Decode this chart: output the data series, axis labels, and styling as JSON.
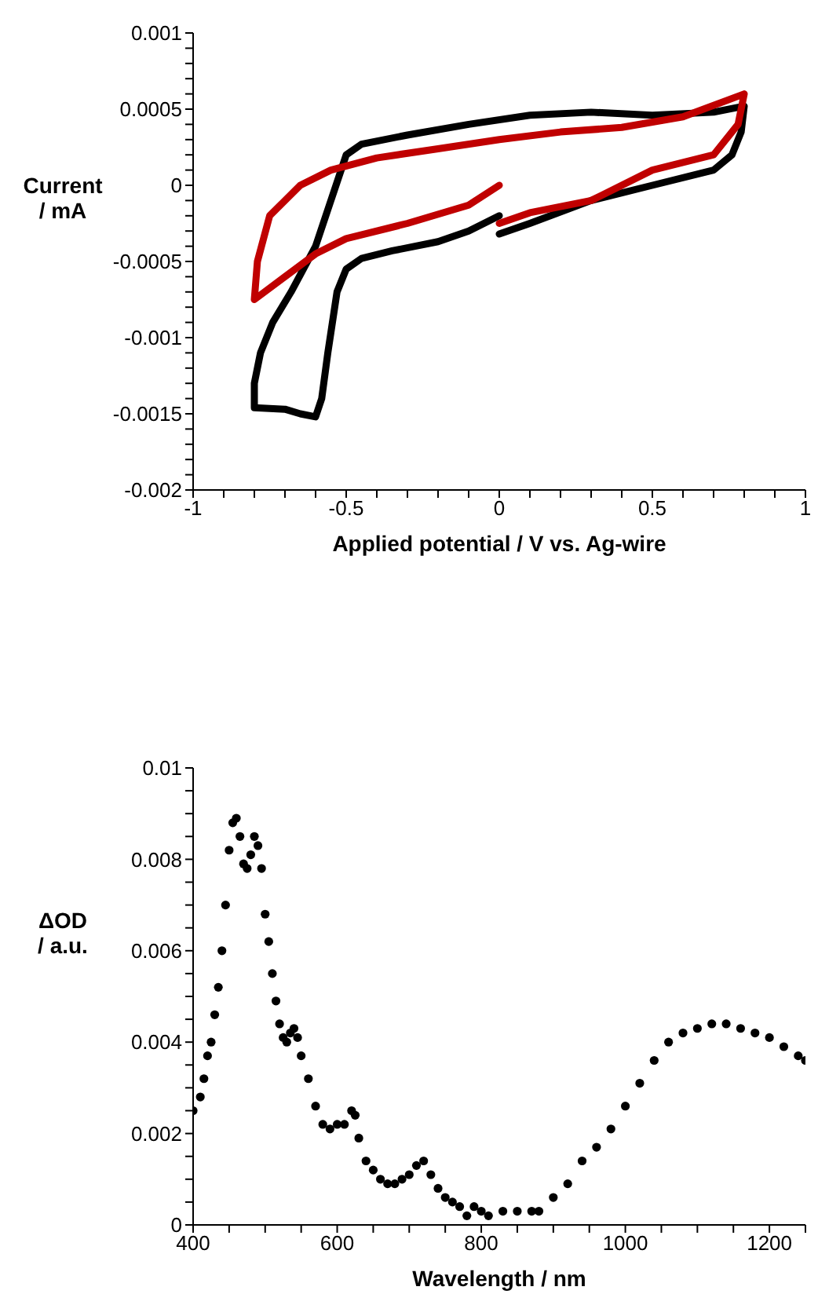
{
  "chart_data": [
    {
      "type": "line",
      "xlabel": "Applied potential / V vs. Ag-wire",
      "ylabel": "Current\n/ mA",
      "marker": "none",
      "line_style": "solid",
      "xlim": [
        -1,
        1
      ],
      "ylim": [
        -0.002,
        0.001
      ],
      "xticks": [
        -1,
        {
          "value": -0.9,
          "label": null
        },
        {
          "value": -0.8,
          "label": null
        },
        {
          "value": -0.7,
          "label": null
        },
        {
          "value": -0.6,
          "label": null
        },
        -0.5,
        {
          "value": -0.4,
          "label": null
        },
        {
          "value": -0.3,
          "label": null
        },
        {
          "value": -0.2,
          "label": null
        },
        {
          "value": -0.1,
          "label": null
        },
        0,
        {
          "value": 0.1,
          "label": null
        },
        {
          "value": 0.2,
          "label": null
        },
        {
          "value": 0.3,
          "label": null
        },
        {
          "value": 0.4,
          "label": null
        },
        0.5,
        {
          "value": 0.6,
          "label": null
        },
        {
          "value": 0.7,
          "label": null
        },
        {
          "value": 0.8,
          "label": null
        },
        {
          "value": 0.9,
          "label": null
        },
        1
      ],
      "yticks": [
        -0.002,
        {
          "value": -0.0019,
          "label": null
        },
        {
          "value": -0.0018,
          "label": null
        },
        {
          "value": -0.0017,
          "label": null
        },
        {
          "value": -0.0016,
          "label": null
        },
        -0.0015,
        {
          "value": -0.0014,
          "label": null
        },
        {
          "value": -0.0013,
          "label": null
        },
        {
          "value": -0.0012,
          "label": null
        },
        {
          "value": -0.0011,
          "label": null
        },
        -0.001,
        {
          "value": -0.0009,
          "label": null
        },
        {
          "value": -0.0008,
          "label": null
        },
        {
          "value": -0.0007,
          "label": null
        },
        {
          "value": -0.0006,
          "label": null
        },
        -0.0005,
        {
          "value": -0.0004,
          "label": null
        },
        {
          "value": -0.0003,
          "label": null
        },
        {
          "value": -0.0002,
          "label": null
        },
        {
          "value": -0.0001,
          "label": null
        },
        0,
        {
          "value": 0.0001,
          "label": null
        },
        {
          "value": 0.0002,
          "label": null
        },
        {
          "value": 0.0003,
          "label": null
        },
        {
          "value": 0.0004,
          "label": null
        },
        0.0005,
        {
          "value": 0.0006,
          "label": null
        },
        {
          "value": 0.0007,
          "label": null
        },
        {
          "value": 0.0008,
          "label": null
        },
        {
          "value": 0.0009,
          "label": null
        },
        0.001
      ],
      "series": [
        {
          "color": "#000000",
          "x": [
            0,
            -0.1,
            -0.2,
            -0.35,
            -0.45,
            -0.5,
            -0.53,
            -0.56,
            -0.58,
            -0.6,
            -0.65,
            -0.7,
            -0.8,
            -0.8,
            -0.78,
            -0.74,
            -0.68,
            -0.6,
            -0.55,
            -0.5,
            -0.45,
            -0.3,
            -0.1,
            0.1,
            0.3,
            0.5,
            0.7,
            0.8,
            0.79,
            0.76,
            0.7,
            0.5,
            0.3,
            0.1,
            0
          ],
          "values": [
            -0.0002,
            -0.0003,
            -0.00037,
            -0.00043,
            -0.00048,
            -0.00055,
            -0.0007,
            -0.0011,
            -0.0014,
            -0.00152,
            -0.0015,
            -0.00147,
            -0.00146,
            -0.0013,
            -0.0011,
            -0.0009,
            -0.0007,
            -0.0004,
            -0.0001,
            0.0002,
            0.00027,
            0.00033,
            0.0004,
            0.00046,
            0.00048,
            0.00046,
            0.00048,
            0.00052,
            0.00035,
            0.0002,
            0.0001,
            0.0,
            -0.0001,
            -0.00025,
            -0.00032
          ]
        },
        {
          "color": "#c00000",
          "x": [
            0,
            -0.1,
            -0.3,
            -0.5,
            -0.6,
            -0.7,
            -0.8,
            -0.79,
            -0.75,
            -0.65,
            -0.55,
            -0.4,
            -0.2,
            0,
            0.2,
            0.4,
            0.6,
            0.8,
            0.78,
            0.7,
            0.5,
            0.3,
            0.1,
            0
          ],
          "values": [
            0.0,
            -0.00013,
            -0.00025,
            -0.00035,
            -0.00045,
            -0.0006,
            -0.00075,
            -0.0005,
            -0.0002,
            0.0,
            0.0001,
            0.00018,
            0.00024,
            0.0003,
            0.00035,
            0.00038,
            0.00045,
            0.0006,
            0.0004,
            0.0002,
            0.0001,
            -0.0001,
            -0.00018,
            -0.00025
          ]
        }
      ]
    },
    {
      "type": "scatter",
      "xlabel": "Wavelength / nm",
      "ylabel": "ΔOD\n/ a.u.",
      "marker": "circle",
      "xlim": [
        400,
        1250
      ],
      "ylim": [
        0,
        0.01
      ],
      "xticks": [
        400,
        {
          "value": 450,
          "label": null
        },
        {
          "value": 500,
          "label": null
        },
        {
          "value": 550,
          "label": null
        },
        600,
        {
          "value": 650,
          "label": null
        },
        {
          "value": 700,
          "label": null
        },
        {
          "value": 750,
          "label": null
        },
        800,
        {
          "value": 850,
          "label": null
        },
        {
          "value": 900,
          "label": null
        },
        {
          "value": 950,
          "label": null
        },
        1000,
        {
          "value": 1050,
          "label": null
        },
        {
          "value": 1100,
          "label": null
        },
        {
          "value": 1150,
          "label": null
        },
        1200,
        {
          "value": 1250,
          "label": null
        }
      ],
      "yticks": [
        0,
        {
          "value": 0.0005,
          "label": null
        },
        {
          "value": 0.001,
          "label": null
        },
        {
          "value": 0.0015,
          "label": null
        },
        0.002,
        {
          "value": 0.0025,
          "label": null
        },
        {
          "value": 0.003,
          "label": null
        },
        {
          "value": 0.0035,
          "label": null
        },
        0.004,
        {
          "value": 0.0045,
          "label": null
        },
        {
          "value": 0.005,
          "label": null
        },
        {
          "value": 0.0055,
          "label": null
        },
        0.006,
        {
          "value": 0.0065,
          "label": null
        },
        {
          "value": 0.007,
          "label": null
        },
        {
          "value": 0.0075,
          "label": null
        },
        0.008,
        {
          "value": 0.0085,
          "label": null
        },
        {
          "value": 0.009,
          "label": null
        },
        {
          "value": 0.0095,
          "label": null
        },
        0.01
      ],
      "series": [
        {
          "color": "#000000",
          "x": [
            400,
            410,
            415,
            420,
            425,
            430,
            435,
            440,
            445,
            450,
            455,
            460,
            465,
            470,
            475,
            480,
            485,
            490,
            495,
            500,
            505,
            510,
            515,
            520,
            525,
            530,
            535,
            540,
            545,
            550,
            560,
            570,
            580,
            590,
            600,
            610,
            620,
            625,
            630,
            640,
            650,
            660,
            670,
            680,
            690,
            700,
            710,
            720,
            730,
            740,
            750,
            760,
            770,
            780,
            790,
            800,
            810,
            830,
            850,
            870,
            880,
            900,
            920,
            940,
            960,
            980,
            1000,
            1020,
            1040,
            1060,
            1080,
            1100,
            1120,
            1140,
            1160,
            1180,
            1200,
            1220,
            1240,
            1250
          ],
          "values": [
            0.0025,
            0.0028,
            0.0032,
            0.0037,
            0.004,
            0.0046,
            0.0052,
            0.006,
            0.007,
            0.0082,
            0.0088,
            0.0089,
            0.0085,
            0.0079,
            0.0078,
            0.0081,
            0.0085,
            0.0083,
            0.0078,
            0.0068,
            0.0062,
            0.0055,
            0.0049,
            0.0044,
            0.0041,
            0.004,
            0.0042,
            0.0043,
            0.0041,
            0.0037,
            0.0032,
            0.0026,
            0.0022,
            0.0021,
            0.0022,
            0.0022,
            0.0025,
            0.0024,
            0.0019,
            0.0014,
            0.0012,
            0.001,
            0.0009,
            0.0009,
            0.001,
            0.0011,
            0.0013,
            0.0014,
            0.0011,
            0.0008,
            0.0006,
            0.0005,
            0.0004,
            0.0002,
            0.0004,
            0.0003,
            0.0002,
            0.0003,
            0.0003,
            0.0003,
            0.0003,
            0.0006,
            0.0009,
            0.0014,
            0.0017,
            0.0021,
            0.0026,
            0.0031,
            0.0036,
            0.004,
            0.0042,
            0.0043,
            0.0044,
            0.0044,
            0.0043,
            0.0042,
            0.0041,
            0.0039,
            0.0037,
            0.0036
          ]
        }
      ]
    }
  ]
}
